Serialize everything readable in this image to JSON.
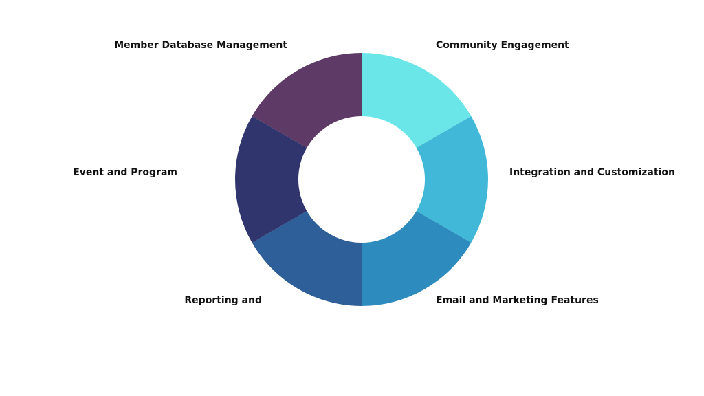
{
  "nodes": [
    {
      "label": "Community Engagement",
      "color": "#6ae6e8"
    },
    {
      "label": "Integration and Customization",
      "color": "#42b8d8"
    },
    {
      "label": "Email and Marketing Features",
      "color": "#2d8bbd"
    },
    {
      "label": "Reporting and",
      "color": "#2f5f98"
    },
    {
      "label": "Event and Program",
      "color": "#30356e"
    },
    {
      "label": "Member Database Management",
      "color": "#5e3a66"
    }
  ]
}
